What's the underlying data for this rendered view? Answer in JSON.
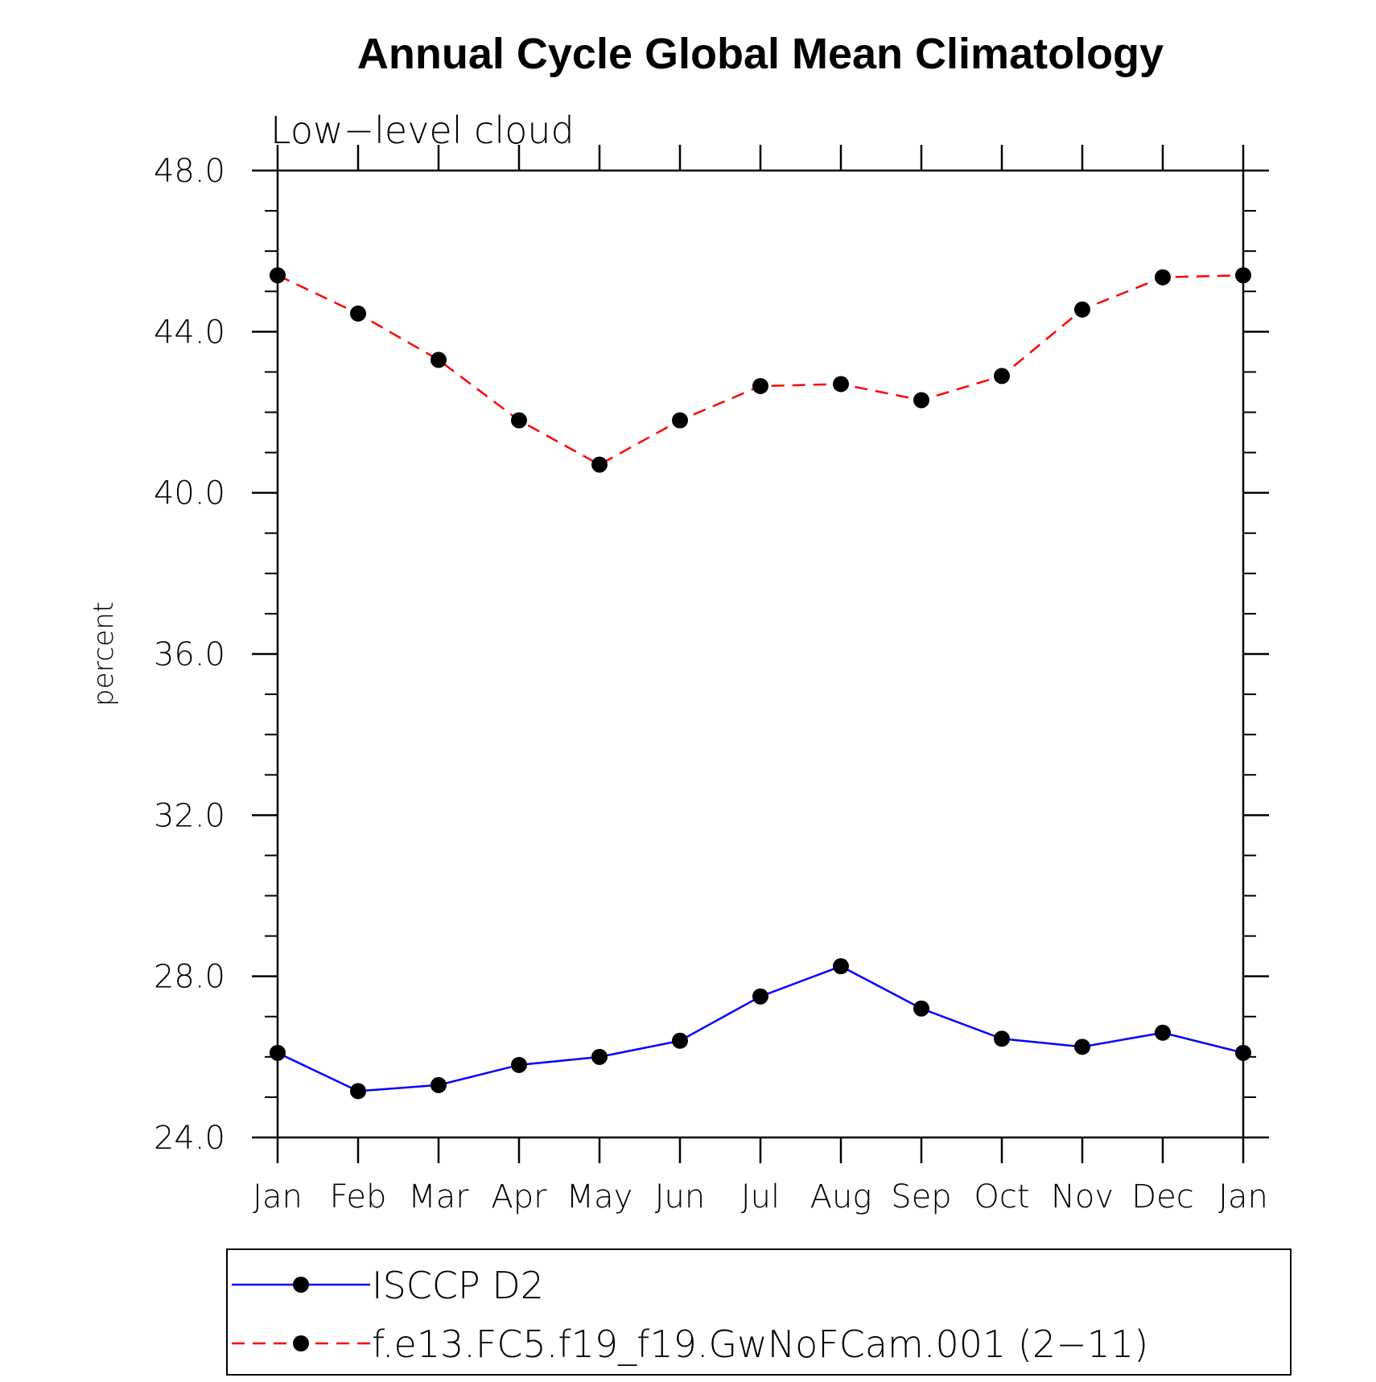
{
  "chart_data": {
    "type": "line",
    "title": "Annual Cycle Global Mean Climatology",
    "subtitle": "Low−level cloud",
    "ylabel": "percent",
    "xlabel": "",
    "categories": [
      "Jan",
      "Feb",
      "Mar",
      "Apr",
      "May",
      "Jun",
      "Jul",
      "Aug",
      "Sep",
      "Oct",
      "Nov",
      "Dec",
      "Jan"
    ],
    "ylim": [
      24.0,
      48.0
    ],
    "yticks": [
      24.0,
      28.0,
      32.0,
      36.0,
      40.0,
      44.0,
      48.0
    ],
    "ytick_labels": [
      "24.0",
      "28.0",
      "32.0",
      "36.0",
      "40.0",
      "44.0",
      "48.0"
    ],
    "y_minor_step": 1.0,
    "grid": false,
    "legend_position": "bottom",
    "series": [
      {
        "name": "ISCCP D2",
        "color": "#0000ff",
        "dash": "solid",
        "marker": "filled-circle",
        "values": [
          26.1,
          25.15,
          25.3,
          25.8,
          26.0,
          26.4,
          27.5,
          28.25,
          27.2,
          26.45,
          26.25,
          26.6,
          26.1
        ]
      },
      {
        "name": "f.e13.FC5.f19_f19.GwNoFCam.001 (2−11)",
        "color": "#ff0000",
        "dash": "dashed",
        "marker": "filled-circle",
        "values": [
          45.4,
          44.45,
          43.3,
          41.8,
          40.7,
          41.8,
          42.65,
          42.7,
          42.3,
          42.9,
          44.55,
          45.35,
          45.4
        ]
      }
    ]
  }
}
